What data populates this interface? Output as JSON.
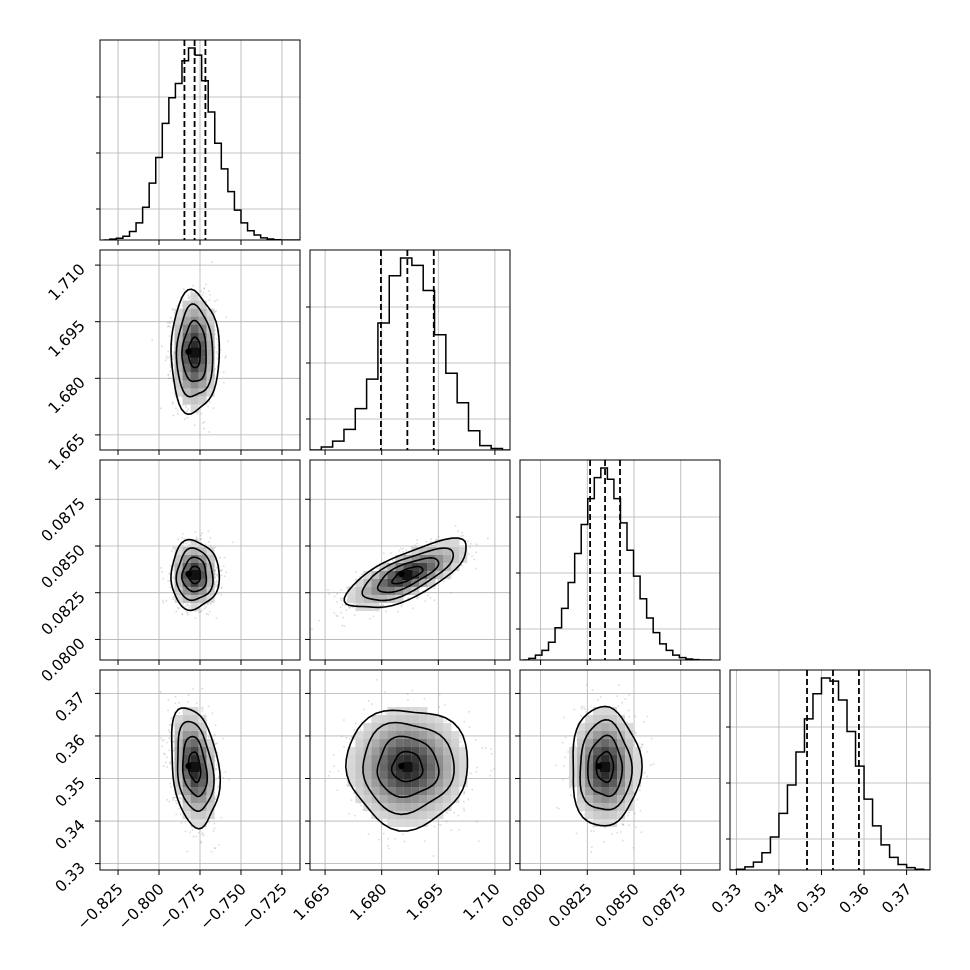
{
  "figure": {
    "grid": true
  },
  "chart_data": {
    "type": "corner",
    "parameters": [
      {
        "id": "p0",
        "ticks": [
          -0.825,
          -0.8,
          -0.775,
          -0.75,
          -0.725
        ],
        "tick_labels": [
          "−0.825",
          "−0.800",
          "−0.775",
          "−0.750",
          "−0.725"
        ],
        "range": [
          -0.836,
          -0.714
        ],
        "quantiles": [
          -0.7845,
          -0.7783,
          -0.7717
        ],
        "hist_centers": [
          -0.832,
          -0.828,
          -0.824,
          -0.82,
          -0.816,
          -0.812,
          -0.808,
          -0.804,
          -0.8,
          -0.796,
          -0.792,
          -0.788,
          -0.784,
          -0.78,
          -0.776,
          -0.772,
          -0.768,
          -0.764,
          -0.76,
          -0.756,
          -0.752,
          -0.748,
          -0.744,
          -0.74,
          -0.736,
          -0.732,
          -0.728,
          -0.724,
          -0.72,
          -0.716
        ],
        "hist_counts": [
          0,
          0.6,
          1.2,
          2.6,
          6,
          12,
          23,
          40,
          58,
          82,
          100,
          110,
          126,
          135,
          130,
          112,
          90,
          68,
          50,
          34,
          21,
          12,
          6.5,
          3.5,
          1.5,
          0.7,
          0.2,
          0,
          0,
          0
        ]
      },
      {
        "id": "p1",
        "ticks": [
          1.665,
          1.68,
          1.695,
          1.71
        ],
        "tick_labels": [
          "1.665",
          "1.680",
          "1.695",
          "1.710"
        ],
        "range": [
          1.661,
          1.714
        ],
        "quantiles": [
          1.6798,
          1.6868,
          1.6938
        ],
        "hist_centers": [
          1.6625,
          1.6655,
          1.6685,
          1.6715,
          1.6745,
          1.6775,
          1.6805,
          1.6835,
          1.6865,
          1.6895,
          1.6925,
          1.6955,
          1.6985,
          1.7015,
          1.7045,
          1.7075,
          1.7105,
          1.7135
        ],
        "hist_counts": [
          0,
          2,
          6,
          14,
          28,
          48,
          86,
          118,
          130,
          125,
          108,
          78,
          52,
          32,
          13,
          3,
          1,
          0
        ]
      },
      {
        "id": "p2",
        "ticks": [
          0.08,
          0.0825,
          0.085,
          0.0875
        ],
        "tick_labels": [
          "0.0800",
          "0.0825",
          "0.0850",
          "0.0875"
        ],
        "range": [
          0.0789,
          0.0896
        ],
        "quantiles": [
          0.08265,
          0.08345,
          0.08425
        ],
        "hist_centers": [
          0.0792,
          0.07955,
          0.0799,
          0.08025,
          0.0806,
          0.08095,
          0.0813,
          0.08165,
          0.082,
          0.08235,
          0.0827,
          0.08305,
          0.0834,
          0.08375,
          0.0841,
          0.08445,
          0.0848,
          0.08515,
          0.0855,
          0.08585,
          0.0862,
          0.08655,
          0.0869,
          0.08725,
          0.0876,
          0.08795,
          0.0883,
          0.08865,
          0.089
        ],
        "hist_counts": [
          0,
          1,
          3,
          6,
          11,
          20,
          32,
          48,
          66,
          84,
          100,
          113,
          119,
          112,
          100,
          85,
          68,
          52,
          38,
          26,
          17,
          10,
          6,
          3,
          1.5,
          0.6,
          0.2,
          0,
          0
        ]
      },
      {
        "id": "p3",
        "ticks": [
          0.33,
          0.34,
          0.35,
          0.36,
          0.37
        ],
        "tick_labels": [
          "0.33",
          "0.34",
          "0.35",
          "0.36",
          "0.37"
        ],
        "range": [
          0.3285,
          0.3755
        ],
        "quantiles": [
          0.3466,
          0.3527,
          0.3588
        ],
        "hist_centers": [
          0.329,
          0.331,
          0.333,
          0.335,
          0.337,
          0.339,
          0.341,
          0.343,
          0.345,
          0.347,
          0.349,
          0.351,
          0.353,
          0.355,
          0.357,
          0.359,
          0.361,
          0.363,
          0.365,
          0.367,
          0.369,
          0.371,
          0.373,
          0.375
        ],
        "hist_counts": [
          0,
          0.5,
          2,
          5,
          11,
          21,
          36,
          54,
          75,
          96,
          112,
          122,
          120,
          108,
          88,
          66,
          45,
          28,
          16,
          8,
          3.5,
          1.5,
          0.5,
          0
        ]
      }
    ],
    "pairs": [
      {
        "row": 1,
        "col": 0,
        "corr": 0.0
      },
      {
        "row": 2,
        "col": 0,
        "corr": 0.0
      },
      {
        "row": 2,
        "col": 1,
        "corr": 0.72
      },
      {
        "row": 3,
        "col": 0,
        "corr": -0.25
      },
      {
        "row": 3,
        "col": 1,
        "corr": 0.0
      },
      {
        "row": 3,
        "col": 2,
        "corr": 0.0
      }
    ],
    "contour_levels": [
      0.5,
      1.0,
      1.5,
      2.0
    ],
    "hist_style": "step",
    "quantile_style": "dashed"
  }
}
